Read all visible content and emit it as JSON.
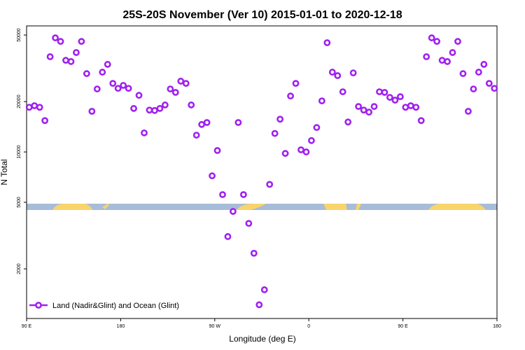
{
  "chart_data": {
    "type": "scatter",
    "title": "25S-20S November (Ver 10)   2015-01-01 to 2020-12-18",
    "x_label": "Longitude (deg E)",
    "y_label": "N Total",
    "log_y": true,
    "legend": "bottom-left",
    "xlim": [
      90,
      540
    ],
    "xticks": [
      {
        "value": 90,
        "label": "90 E"
      },
      180,
      {
        "value": 270,
        "label": "90 W"
      },
      {
        "value": 360,
        "label": "0"
      },
      {
        "value": 450,
        "label": "90 E"
      },
      {
        "value": 540,
        "label": "180"
      }
    ],
    "ylim": [
      1010,
      56700
    ],
    "yticks": [
      2000,
      5000,
      10000,
      20000,
      50000
    ],
    "x": [
      92.5,
      97.5,
      102.5,
      107.5,
      112.5,
      117.5,
      122.5,
      127.5,
      132.5,
      137.5,
      142.5,
      147.5,
      152.5,
      157.5,
      162.5,
      167.5,
      172.5,
      177.5,
      182.5,
      187.5,
      192.5,
      197.5,
      202.5,
      207.5,
      212.5,
      217.5,
      222.5,
      227.5,
      232.5,
      237.5,
      242.5,
      247.5,
      252.5,
      257.5,
      262.5,
      267.5,
      272.5,
      277.5,
      282.5,
      287.5,
      292.5,
      297.5,
      302.5,
      307.5,
      312.5,
      317.5,
      322.5,
      327.5,
      332.5,
      337.5,
      342.5,
      347.5,
      352.5,
      357.5,
      362.5,
      367.5,
      372.5,
      377.5,
      382.5,
      387.5,
      392.5,
      397.5,
      402.5,
      407.5,
      412.5,
      417.5,
      422.5,
      427.5,
      432.5,
      437.5,
      442.5,
      447.5,
      452.5,
      457.5,
      462.5,
      467.5,
      472.5,
      477.5,
      482.5,
      487.5,
      492.5,
      497.5,
      502.5,
      507.5,
      512.5,
      517.5,
      522.5,
      527.5,
      532.5,
      537.5
    ],
    "series": [
      {
        "name": "Land (Nadir&Glint) and Ocean (Glint)",
        "color": "#a020f0",
        "values": [
          18500,
          18900,
          18500,
          15400,
          37100,
          48100,
          45800,
          35300,
          34700,
          39300,
          45800,
          29400,
          17500,
          23800,
          30000,
          33400,
          25700,
          24000,
          25000,
          24000,
          18200,
          21800,
          13000,
          17800,
          17700,
          18200,
          19100,
          23800,
          22700,
          26500,
          25700,
          19100,
          12600,
          14600,
          15000,
          7200,
          10200,
          5560,
          3120,
          4410,
          15000,
          5560,
          3740,
          2480,
          1220,
          1500,
          6400,
          12900,
          15700,
          9800,
          21600,
          25700,
          10300,
          10000,
          11700,
          14000,
          20200,
          45000,
          30000,
          28600,
          22900,
          15100,
          29700,
          18700,
          17800,
          17300,
          18700,
          22900,
          22700,
          21200,
          20400,
          21400,
          18500,
          18900,
          18500,
          15400,
          37100,
          48100,
          45800,
          35300,
          34700,
          39300,
          45800,
          29400,
          17500,
          23800,
          30000,
          33400,
          25700,
          24000
        ]
      }
    ]
  }
}
